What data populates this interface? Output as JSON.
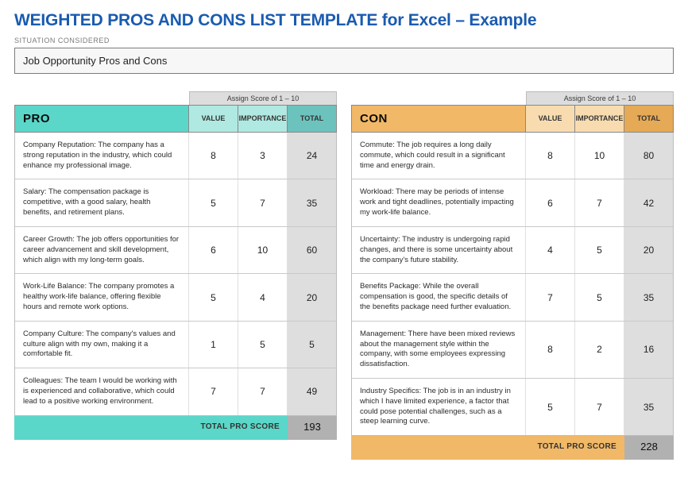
{
  "title": "WEIGHTED PROS AND CONS LIST TEMPLATE for Excel – Example",
  "subtitle": "SITUATION CONSIDERED",
  "situation": "Job Opportunity Pros and Cons",
  "assign_label": "Assign Score of 1 – 10",
  "columns": {
    "value": "VALUE",
    "importance": "IMPORTANCE",
    "total": "TOTAL"
  },
  "total_label": "TOTAL PRO SCORE",
  "colors": {
    "title": "#1a5bb0",
    "pro_header": "#5ad7c9",
    "pro_sub": "#b0e9e2",
    "pro_totalcol": "#6cc3bd",
    "con_header": "#f1b867",
    "con_sub": "#f8dcb0",
    "con_totalcol": "#e6a955",
    "total_shade": "#dedede",
    "footer_total": "#b1b1b1"
  },
  "pro": {
    "heading": "PRO",
    "rows": [
      {
        "desc": "Company Reputation: The company has a strong reputation in the industry, which could enhance my professional image.",
        "value": 8,
        "importance": 3,
        "total": 24
      },
      {
        "desc": "Salary: The compensation package is competitive, with a good salary, health benefits, and retirement plans.",
        "value": 5,
        "importance": 7,
        "total": 35
      },
      {
        "desc": "Career Growth: The job offers opportunities for career advancement and skill development, which align with my long-term goals.",
        "value": 6,
        "importance": 10,
        "total": 60
      },
      {
        "desc": "Work-Life Balance: The company promotes a healthy work-life balance, offering flexible hours and remote work options.",
        "value": 5,
        "importance": 4,
        "total": 20
      },
      {
        "desc": "Company Culture: The company's values and culture align with my own, making it a comfortable fit.",
        "value": 1,
        "importance": 5,
        "total": 5
      },
      {
        "desc": "Colleagues: The team I would be working with is experienced and collaborative, which could lead to a positive working environment.",
        "value": 7,
        "importance": 7,
        "total": 49
      }
    ],
    "total": 193
  },
  "con": {
    "heading": "CON",
    "rows": [
      {
        "desc": "Commute: The job requires a long daily commute, which could result in a significant time and energy drain.",
        "value": 8,
        "importance": 10,
        "total": 80
      },
      {
        "desc": "Workload: There may be periods of intense work and tight deadlines, potentially impacting my work-life balance.",
        "value": 6,
        "importance": 7,
        "total": 42
      },
      {
        "desc": "Uncertainty: The industry is undergoing rapid changes, and there is some uncertainty about the company's future stability.",
        "value": 4,
        "importance": 5,
        "total": 20
      },
      {
        "desc": "Benefits Package: While the overall compensation is good, the specific details of the benefits package need further evaluation.",
        "value": 7,
        "importance": 5,
        "total": 35
      },
      {
        "desc": "Management: There have been mixed reviews about the management style within the company, with some employees expressing dissatisfaction.",
        "value": 8,
        "importance": 2,
        "total": 16
      },
      {
        "desc": "Industry Specifics: The job is in an industry in which I have limited experience, a factor that could pose potential challenges, such as a steep learning curve.",
        "value": 5,
        "importance": 7,
        "total": 35
      }
    ],
    "total": 228
  }
}
